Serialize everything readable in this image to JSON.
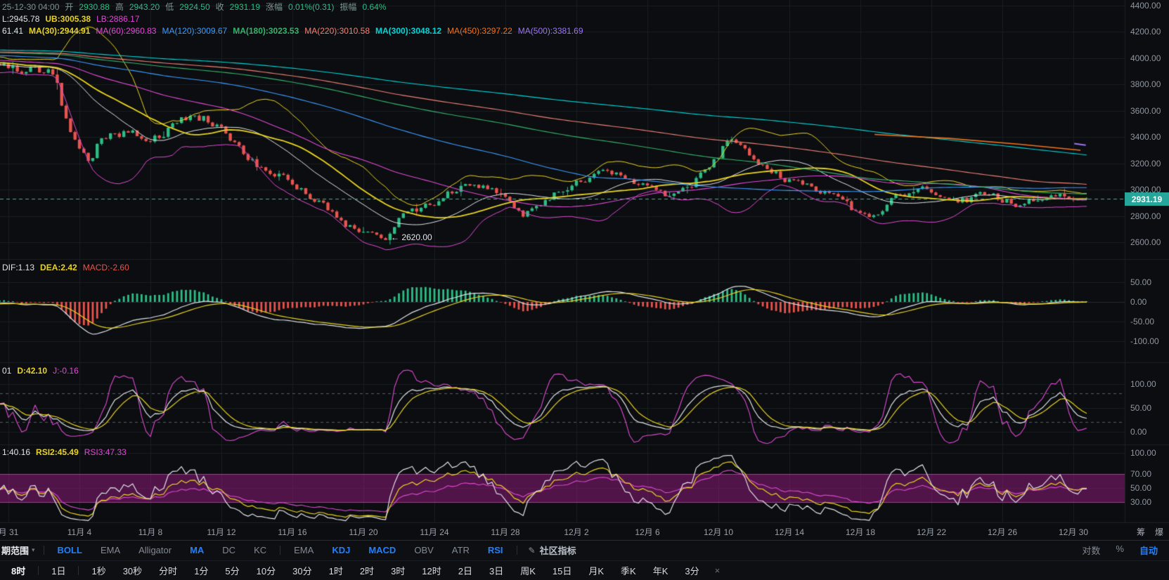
{
  "colors": {
    "bg": "#0b0d10",
    "grid": "#1a1d23",
    "grid_strong": "#262a30",
    "axis_text": "#8f96a0",
    "up": "#2ebd85",
    "down": "#e8544e",
    "muted": "#7f948d",
    "white": "#dfe3e8",
    "yellow": "#e9d321",
    "magenta": "#e04ad4",
    "blue": "#3d9bff",
    "green": "#35b26b",
    "salmon": "#ef8276",
    "cyan": "#00d5d8",
    "orange": "#f0731e",
    "purple": "#9d75f0",
    "accent": "#2080ff",
    "badge_bg": "#26a69a",
    "badge_text": "#ffffff",
    "band": "rgba(150,28,128,0.5)",
    "band_edge": "#c12ba2",
    "dash": "#5a6068",
    "separator": "#1c2026"
  },
  "legend": {
    "ohlc_parts": [
      {
        "text": "25-12-30 04:00",
        "color": "muted"
      },
      {
        "text": "开",
        "color": "muted"
      },
      {
        "text": "2930.88",
        "color": "up"
      },
      {
        "text": "高",
        "color": "muted"
      },
      {
        "text": "2943.20",
        "color": "up"
      },
      {
        "text": "低",
        "color": "muted"
      },
      {
        "text": "2924.50",
        "color": "up"
      },
      {
        "text": "收",
        "color": "muted"
      },
      {
        "text": "2931.19",
        "color": "up"
      },
      {
        "text": "涨幅",
        "color": "muted"
      },
      {
        "text": "0.01%(0.31)",
        "color": "up"
      },
      {
        "text": "振幅",
        "color": "muted"
      },
      {
        "text": "0.64%",
        "color": "up"
      }
    ],
    "boll_parts": [
      {
        "text": "L:2945.78",
        "color": "white"
      },
      {
        "text": "UB:3005.38",
        "color": "yellow",
        "bold": true
      },
      {
        "text": "LB:2886.17",
        "color": "magenta"
      }
    ],
    "ma_parts": [
      {
        "text": "61.41",
        "color": "white"
      },
      {
        "text": "MA(30):2944.91",
        "color": "yellow",
        "bold": true
      },
      {
        "text": "MA(60):2960.83",
        "color": "magenta"
      },
      {
        "text": "MA(120):3009.67",
        "color": "blue"
      },
      {
        "text": "MA(180):3023.53",
        "color": "green",
        "bold": true
      },
      {
        "text": "MA(220):3010.58",
        "color": "salmon"
      },
      {
        "text": "MA(300):3048.12",
        "color": "cyan",
        "bold": true
      },
      {
        "text": "MA(450):3297.22",
        "color": "orange"
      },
      {
        "text": "MA(500):3381.69",
        "color": "purple"
      }
    ],
    "macd_parts": [
      {
        "text": "DIF:1.13",
        "color": "white"
      },
      {
        "text": "DEA:2.42",
        "color": "yellow",
        "bold": true
      },
      {
        "text": "MACD:-2.60",
        "color": "down"
      }
    ],
    "kdj_parts": [
      {
        "text": "01",
        "color": "white"
      },
      {
        "text": "D:42.10",
        "color": "yellow",
        "bold": true
      },
      {
        "text": "J:-0.16",
        "color": "magenta"
      }
    ],
    "rsi_parts": [
      {
        "text": "1:40.16",
        "color": "white"
      },
      {
        "text": "RSI2:45.49",
        "color": "yellow",
        "bold": true
      },
      {
        "text": "RSI3:47.33",
        "color": "magenta"
      }
    ]
  },
  "axes": {
    "price": [
      "4400.00",
      "4200.00",
      "4000.00",
      "3800.00",
      "3600.00",
      "3400.00",
      "3200.00",
      "3000.00",
      "2800.00",
      "2600.00"
    ],
    "macd": [
      "50.00",
      "0.00",
      "-50.00",
      "-100.00"
    ],
    "kdj": [
      "100.00",
      "50.00",
      "0.00"
    ],
    "rsi": [
      "100.00",
      "70.00",
      "50.00",
      "30.00"
    ],
    "dates": [
      "月 31",
      "11月 4",
      "11月 8",
      "11月 12",
      "11月 16",
      "11月 20",
      "11月 24",
      "11月 28",
      "12月 2",
      "12月 6",
      "12月 10",
      "12月 14",
      "12月 18",
      "12月 22",
      "12月 26",
      "12月 30"
    ]
  },
  "price_line": {
    "label": "2931.19"
  },
  "annotation": {
    "text": "← 2620.00"
  },
  "date_row_tools": [
    {
      "label": "筹"
    },
    {
      "label": "爆"
    }
  ],
  "toolbar": {
    "period_range": "期范围",
    "groups": [
      {
        "items": [
          {
            "label": "BOLL",
            "active": true
          },
          {
            "label": "EMA"
          },
          {
            "label": "Alligator"
          },
          {
            "label": "MA",
            "active": true
          },
          {
            "label": "DC"
          },
          {
            "label": "KC"
          }
        ]
      },
      {
        "items": [
          {
            "label": "EMA"
          },
          {
            "label": "KDJ",
            "active": true
          },
          {
            "label": "MACD",
            "active": true
          },
          {
            "label": "OBV"
          },
          {
            "label": "ATR"
          },
          {
            "label": "RSI",
            "active": true
          }
        ]
      }
    ],
    "community": {
      "label": "社区指标"
    },
    "right": [
      {
        "label": "对数"
      },
      {
        "label": "%"
      },
      {
        "label": "自动",
        "active": true
      }
    ]
  },
  "timeframes": {
    "pinned": [
      {
        "label": "8时",
        "active": true
      },
      {
        "label": "1日"
      }
    ],
    "items": [
      {
        "label": "1秒"
      },
      {
        "label": "30秒"
      },
      {
        "label": "分时"
      },
      {
        "label": "1分"
      },
      {
        "label": "5分"
      },
      {
        "label": "10分"
      },
      {
        "label": "30分"
      },
      {
        "label": "1时"
      },
      {
        "label": "2时"
      },
      {
        "label": "3时"
      },
      {
        "label": "12时"
      },
      {
        "label": "2日"
      },
      {
        "label": "3日"
      },
      {
        "label": "周K"
      },
      {
        "label": "15日"
      },
      {
        "label": "月K"
      },
      {
        "label": "季K"
      },
      {
        "label": "年K"
      },
      {
        "label": "3分"
      }
    ],
    "close_label": "×"
  },
  "chart_data": {
    "type": "candlestick",
    "panes": [
      "price+BOLL+MA",
      "MACD",
      "KDJ",
      "RSI"
    ],
    "x_axis_labels": [
      "月 31",
      "11月 4",
      "11月 8",
      "11月 12",
      "11月 16",
      "11月 20",
      "11月 24",
      "11月 28",
      "12月 2",
      "12月 6",
      "12月 10",
      "12月 14",
      "12月 18",
      "12月 22",
      "12月 26",
      "12月 30"
    ],
    "price_axis_ticks": [
      4400,
      4200,
      4000,
      3800,
      3600,
      3400,
      3200,
      3000,
      2800,
      2600
    ],
    "macd_axis_ticks": [
      50,
      0,
      -50,
      -100
    ],
    "kdj_axis_ticks": [
      100,
      50,
      0
    ],
    "rsi_axis_ticks": [
      100,
      70,
      50,
      30
    ],
    "last_bar": {
      "datetime": "25-12-30 04:00",
      "open": 2930.88,
      "high": 2943.2,
      "low": 2924.5,
      "close": 2931.19,
      "change_pct": 0.01,
      "change_abs": 0.31,
      "amplitude_pct": 0.64
    },
    "last_price": 2931.19,
    "marked_low": 2620.0,
    "indicators": {
      "boll": {
        "mid": 2945.78,
        "ub": 3005.38,
        "lb": 2886.17
      },
      "ma": {
        "MA30": 2944.91,
        "MA60": 2960.83,
        "MA120": 3009.67,
        "MA180": 3023.53,
        "MA220": 3010.58,
        "MA300": 3048.12,
        "MA450": 3297.22,
        "MA500": 3381.69
      },
      "macd": {
        "dif": 1.13,
        "dea": 2.42,
        "macd": -2.6
      },
      "kdj": {
        "d": 42.1,
        "j": -0.16
      },
      "rsi": {
        "rsi1": 40.16,
        "rsi2": 45.49,
        "rsi3": 47.33
      }
    },
    "price_anchors": [
      [
        0,
        3955
      ],
      [
        1,
        3920
      ],
      [
        2,
        3890
      ],
      [
        2.6,
        3860
      ],
      [
        3.2,
        3560
      ],
      [
        4,
        3300
      ],
      [
        4.6,
        3190
      ],
      [
        5.2,
        3400
      ],
      [
        6,
        3460
      ],
      [
        7,
        3415
      ],
      [
        8,
        3360
      ],
      [
        9,
        3470
      ],
      [
        10,
        3540
      ],
      [
        11,
        3550
      ],
      [
        12,
        3480
      ],
      [
        13,
        3310
      ],
      [
        14,
        3190
      ],
      [
        15,
        3130
      ],
      [
        16,
        3070
      ],
      [
        17,
        2960
      ],
      [
        18,
        2840
      ],
      [
        19,
        2720
      ],
      [
        20,
        2680
      ],
      [
        21,
        2645
      ],
      [
        21.3,
        2628
      ],
      [
        21.7,
        2710
      ],
      [
        22,
        2780
      ],
      [
        23,
        2850
      ],
      [
        24,
        2905
      ],
      [
        25,
        2985
      ],
      [
        26,
        3050
      ],
      [
        27,
        3020
      ],
      [
        28,
        2925
      ],
      [
        29,
        2815
      ],
      [
        30,
        2890
      ],
      [
        31,
        2980
      ],
      [
        32,
        3050
      ],
      [
        33,
        3110
      ],
      [
        34,
        3140
      ],
      [
        35,
        3090
      ],
      [
        36,
        3020
      ],
      [
        37,
        2950
      ],
      [
        38,
        3010
      ],
      [
        39,
        3100
      ],
      [
        40,
        3260
      ],
      [
        40.6,
        3420
      ],
      [
        41,
        3330
      ],
      [
        42,
        3250
      ],
      [
        43,
        3150
      ],
      [
        44,
        3070
      ],
      [
        45,
        3020
      ],
      [
        46,
        2965
      ],
      [
        47,
        2895
      ],
      [
        48,
        2810
      ],
      [
        49,
        2790
      ],
      [
        49.4,
        2860
      ],
      [
        50,
        2940
      ],
      [
        51,
        3000
      ],
      [
        52,
        2990
      ],
      [
        53,
        2950
      ],
      [
        54,
        2925
      ],
      [
        55,
        2950
      ],
      [
        56,
        2915
      ],
      [
        57,
        2895
      ],
      [
        58,
        2940
      ],
      [
        59,
        2950
      ],
      [
        60,
        2935
      ],
      [
        60.75,
        2931.19
      ]
    ],
    "prehistory_anchors": [
      [
        -130,
        4250
      ],
      [
        -95,
        4150
      ],
      [
        -60,
        4080
      ],
      [
        -35,
        4100
      ],
      [
        -18,
        4040
      ],
      [
        -8,
        3990
      ],
      [
        -3,
        3970
      ],
      [
        -0.25,
        3958
      ]
    ],
    "ma450_path": [
      [
        48.8,
        3420
      ],
      [
        53,
        3390
      ],
      [
        57,
        3345
      ],
      [
        60.4,
        3300
      ]
    ],
    "ma500_path": [
      [
        60.05,
        3350
      ],
      [
        60.7,
        3338
      ]
    ]
  }
}
